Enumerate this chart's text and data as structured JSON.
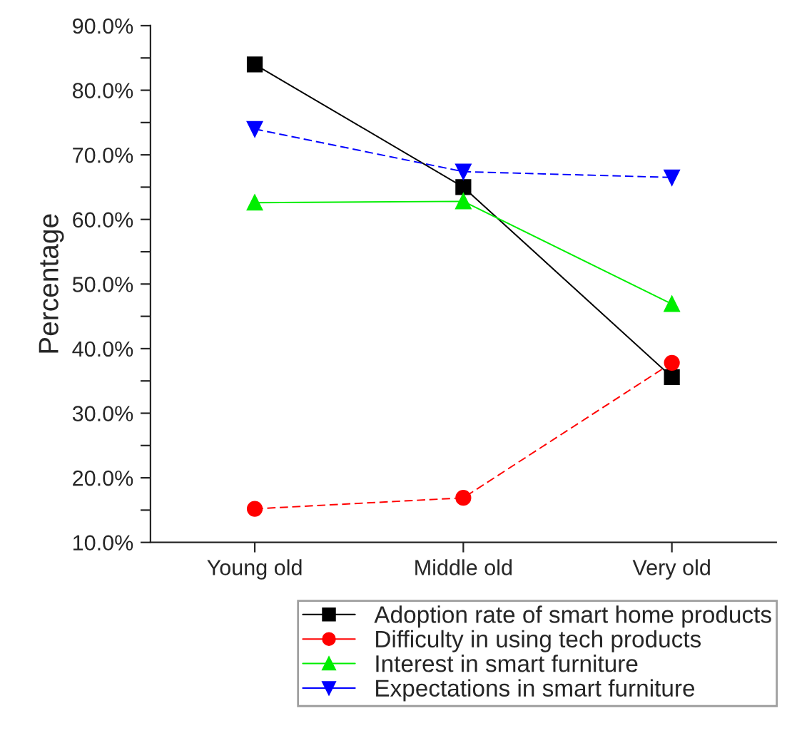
{
  "chart_data": {
    "type": "line",
    "ylabel": "Percentage",
    "categories": [
      "Young old",
      "Middle old",
      "Very old"
    ],
    "series": [
      {
        "name": "Adoption rate of smart home products",
        "color": "#000000",
        "values": [
          84.0,
          65.0,
          35.6
        ],
        "marker": "square",
        "line_style": "solid"
      },
      {
        "name": "Difficulty in using tech products",
        "color": "#ff0000",
        "values": [
          15.2,
          16.9,
          37.8
        ],
        "marker": "circle",
        "line_style": "dashed"
      },
      {
        "name": "Interest in smart furniture",
        "color": "#00ee00",
        "values": [
          62.6,
          62.8,
          46.9
        ],
        "marker": "triangle",
        "line_style": "solid"
      },
      {
        "name": "Expectations in smart furniture",
        "color": "#0000ff",
        "values": [
          74.0,
          67.4,
          66.5
        ],
        "marker": "triangle_down",
        "line_style": "dashed"
      }
    ],
    "ylim": [
      10,
      90
    ],
    "yticks": [
      {
        "value": 10,
        "label": "10.0%"
      },
      {
        "value": 15,
        "label": null
      },
      {
        "value": 20,
        "label": "20.0%"
      },
      {
        "value": 25,
        "label": null
      },
      {
        "value": 30,
        "label": "30.0%"
      },
      {
        "value": 35,
        "label": null
      },
      {
        "value": 40,
        "label": "40.0%"
      },
      {
        "value": 45,
        "label": null
      },
      {
        "value": 50,
        "label": "50.0%"
      },
      {
        "value": 55,
        "label": null
      },
      {
        "value": 60,
        "label": "60.0%"
      },
      {
        "value": 65,
        "label": null
      },
      {
        "value": 70,
        "label": "70.0%"
      },
      {
        "value": 75,
        "label": null
      },
      {
        "value": 80,
        "label": "80.0%"
      },
      {
        "value": 85,
        "label": null
      },
      {
        "value": 90,
        "label": "90.0%"
      }
    ],
    "grid": false,
    "legend": "bottom"
  }
}
